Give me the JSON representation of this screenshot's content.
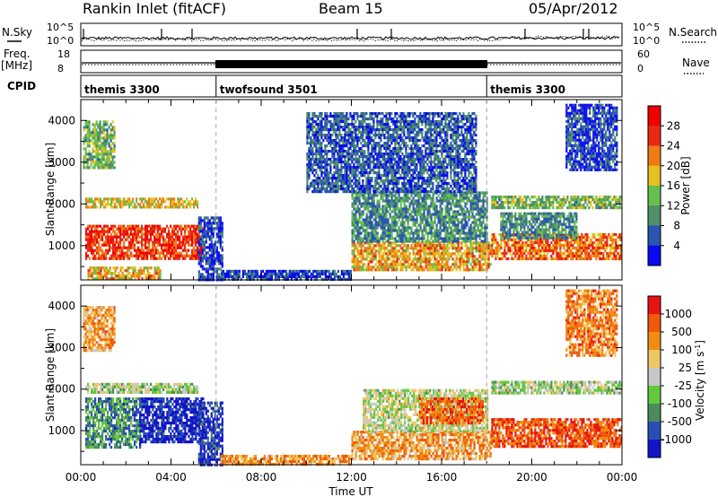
{
  "header": {
    "station": "Rankin Inlet (fitACF)",
    "beam": "Beam 15",
    "date": "05/Apr/2012"
  },
  "top_panels": {
    "nsky_label": "N.Sky",
    "nsky_ticks": [
      "10^5",
      "10^0"
    ],
    "nsearch_label": "N.Search",
    "nsearch_ticks": [
      "10^5",
      "10^0"
    ],
    "freq_label_1": "Freq.",
    "freq_label_2": "[MHz]",
    "freq_ticks": [
      "18",
      "8"
    ],
    "nave_label": "Nave",
    "nave_ticks": [
      "60",
      "0"
    ],
    "cpid_label": "CPID",
    "cpid_segments": [
      {
        "label": "themis 3300",
        "start_hour": 0,
        "end_hour": 6
      },
      {
        "label": "twofsound 3501",
        "start_hour": 6,
        "end_hour": 18
      },
      {
        "label": "themis 3300",
        "start_hour": 18,
        "end_hour": 24
      }
    ]
  },
  "x_axis": {
    "label": "Time UT",
    "ticks": [
      "00:00",
      "04:00",
      "08:00",
      "12:00",
      "16:00",
      "20:00",
      "00:00"
    ]
  },
  "chart_data": [
    {
      "type": "heatmap",
      "panel": "power",
      "ylabel": "Slant Range [km]",
      "yticks": [
        "4000",
        "3000",
        "2000",
        "1000"
      ],
      "ylim": [
        180,
        4500
      ],
      "xlim_hours": [
        0,
        24
      ],
      "colorbar_label": "Power [dB]",
      "colorbar_ticks": [
        "28",
        "24",
        "20",
        "16",
        "12",
        "8",
        "4"
      ],
      "colors": [
        "#0a0af0",
        "#2a55b0",
        "#4f8f6a",
        "#66c050",
        "#e6c01e",
        "#f07a14",
        "#e82a14",
        "#f00000"
      ],
      "regions": [
        {
          "t": [
            0.2,
            5.4
          ],
          "r": [
            700,
            1500
          ],
          "level": 0.82
        },
        {
          "t": [
            0.2,
            5.2
          ],
          "r": [
            1950,
            2150
          ],
          "level": 0.55
        },
        {
          "t": [
            0.1,
            1.5
          ],
          "r": [
            2900,
            4000
          ],
          "level": 0.4
        },
        {
          "t": [
            0.3,
            3.5
          ],
          "r": [
            200,
            500
          ],
          "level": 0.6
        },
        {
          "t": [
            5.2,
            6.3
          ],
          "r": [
            200,
            1700
          ],
          "level": 0.15
        },
        {
          "t": [
            6.2,
            12.0
          ],
          "r": [
            180,
            420
          ],
          "level": 0.15
        },
        {
          "t": [
            12.0,
            18.2
          ],
          "r": [
            400,
            1100
          ],
          "level": 0.62
        },
        {
          "t": [
            12.0,
            18.0
          ],
          "r": [
            1100,
            2300
          ],
          "level": 0.3
        },
        {
          "t": [
            10.0,
            17.5
          ],
          "r": [
            2300,
            4200
          ],
          "level": 0.2
        },
        {
          "t": [
            18.2,
            24.0
          ],
          "r": [
            700,
            1300
          ],
          "level": 0.72
        },
        {
          "t": [
            18.2,
            24.0
          ],
          "r": [
            1900,
            2200
          ],
          "level": 0.42
        },
        {
          "t": [
            18.6,
            22.0
          ],
          "r": [
            1200,
            1800
          ],
          "level": 0.3
        },
        {
          "t": [
            21.5,
            23.8
          ],
          "r": [
            2800,
            4400
          ],
          "level": 0.15
        }
      ]
    },
    {
      "type": "heatmap",
      "panel": "velocity",
      "ylabel": "Slant Range [km]",
      "yticks": [
        "4000",
        "3000",
        "2000",
        "1000"
      ],
      "ylim": [
        180,
        4500
      ],
      "xlim_hours": [
        0,
        24
      ],
      "colorbar_label": "Velocity [m s^-1]",
      "colorbar_ticks": [
        "1000",
        "500",
        "100",
        "25",
        "-25",
        "-100",
        "-500",
        "-1000"
      ],
      "colors": [
        "#1414c8",
        "#2850b4",
        "#4a8c5e",
        "#64c83c",
        "#c8c8c8",
        "#eec864",
        "#f08c14",
        "#f05a0a",
        "#e81414"
      ],
      "regions": [
        {
          "t": [
            0.2,
            2.6
          ],
          "r": [
            600,
            1800
          ],
          "level": 0.28
        },
        {
          "t": [
            2.6,
            5.4
          ],
          "r": [
            700,
            1800
          ],
          "level": 0.06
        },
        {
          "t": [
            0.2,
            5.2
          ],
          "r": [
            1950,
            2150
          ],
          "level": 0.45
        },
        {
          "t": [
            0.1,
            1.5
          ],
          "r": [
            2900,
            4000
          ],
          "level": 0.7
        },
        {
          "t": [
            5.2,
            6.3
          ],
          "r": [
            200,
            1700
          ],
          "level": 0.1
        },
        {
          "t": [
            6.2,
            12.0
          ],
          "r": [
            180,
            420
          ],
          "level": 0.72
        },
        {
          "t": [
            12.0,
            18.2
          ],
          "r": [
            300,
            1000
          ],
          "level": 0.7
        },
        {
          "t": [
            12.5,
            18.0
          ],
          "r": [
            1000,
            2000
          ],
          "level": 0.5
        },
        {
          "t": [
            15.0,
            17.8
          ],
          "r": [
            1200,
            1800
          ],
          "level": 0.82
        },
        {
          "t": [
            18.2,
            24.0
          ],
          "r": [
            600,
            1300
          ],
          "level": 0.85
        },
        {
          "t": [
            18.2,
            24.0
          ],
          "r": [
            1900,
            2200
          ],
          "level": 0.45
        },
        {
          "t": [
            21.5,
            23.8
          ],
          "r": [
            2800,
            4400
          ],
          "level": 0.75
        }
      ]
    }
  ]
}
